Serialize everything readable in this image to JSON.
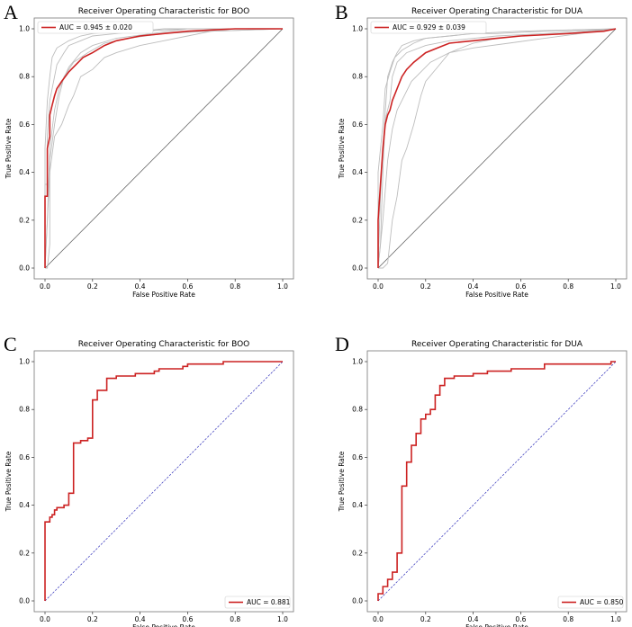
{
  "panels": [
    {
      "letter": "A"
    },
    {
      "letter": "B"
    },
    {
      "letter": "C"
    },
    {
      "letter": "D"
    }
  ],
  "colors": {
    "mean": "#cc2222",
    "fold": "#bdbdbd",
    "diag_solid": "#555555",
    "diag_dashed": "#3333bb",
    "axes": "#777777"
  },
  "chart_data": [
    {
      "type": "line",
      "title": "Receiver Operating Characteristic for BOO",
      "xlabel": "False Positive Rate",
      "ylabel": "True Positive Rate",
      "xlim": [
        0,
        1
      ],
      "ylim": [
        0,
        1
      ],
      "xticks": [
        "0.0",
        "0.2",
        "0.4",
        "0.6",
        "0.8",
        "1.0"
      ],
      "yticks": [
        "0.0",
        "0.2",
        "0.4",
        "0.6",
        "0.8",
        "1.0"
      ],
      "legend_location": "top-left",
      "legend": "AUC = 0.945 ± 0.020",
      "diagonal": "solid",
      "series": [
        {
          "name": "mean",
          "x": [
            0,
            0,
            0.01,
            0.01,
            0.02,
            0.02,
            0.03,
            0.04,
            0.05,
            0.07,
            0.1,
            0.13,
            0.16,
            0.2,
            0.25,
            0.3,
            0.4,
            0.5,
            0.6,
            0.8,
            1.0
          ],
          "y": [
            0,
            0.3,
            0.3,
            0.5,
            0.55,
            0.64,
            0.68,
            0.72,
            0.75,
            0.78,
            0.82,
            0.85,
            0.88,
            0.9,
            0.93,
            0.95,
            0.97,
            0.98,
            0.99,
            1.0,
            1.0
          ]
        },
        {
          "name": "fold 1",
          "x": [
            0,
            0,
            0.01,
            0.01,
            0.02,
            0.04,
            0.05,
            0.08,
            0.1,
            0.15,
            0.2,
            0.3,
            0.4,
            0.6,
            1.0
          ],
          "y": [
            0,
            0.35,
            0.35,
            0.55,
            0.7,
            0.8,
            0.85,
            0.9,
            0.93,
            0.95,
            0.97,
            0.98,
            0.99,
            1.0,
            1.0
          ]
        },
        {
          "name": "fold 2",
          "x": [
            0,
            0.01,
            0.02,
            0.02,
            0.04,
            0.06,
            0.08,
            0.12,
            0.18,
            0.25,
            0.35,
            0.5,
            0.7,
            1.0
          ],
          "y": [
            0,
            0,
            0.1,
            0.45,
            0.6,
            0.72,
            0.8,
            0.86,
            0.9,
            0.94,
            0.96,
            0.98,
            0.99,
            1.0
          ]
        },
        {
          "name": "fold 3",
          "x": [
            0,
            0.02,
            0.04,
            0.07,
            0.1,
            0.12,
            0.15,
            0.2,
            0.25,
            0.3,
            0.4,
            0.5,
            0.6,
            0.7,
            1.0
          ],
          "y": [
            0,
            0.4,
            0.55,
            0.6,
            0.68,
            0.72,
            0.8,
            0.83,
            0.88,
            0.9,
            0.93,
            0.95,
            0.97,
            0.99,
            1.0
          ]
        },
        {
          "name": "fold 4",
          "x": [
            0,
            0,
            0.01,
            0.02,
            0.03,
            0.05,
            0.1,
            0.15,
            0.2,
            0.3,
            0.4,
            0.5,
            1.0
          ],
          "y": [
            0,
            0.5,
            0.7,
            0.8,
            0.88,
            0.92,
            0.95,
            0.97,
            0.98,
            0.99,
            0.99,
            1.0,
            1.0
          ]
        },
        {
          "name": "fold 5",
          "x": [
            0,
            0.01,
            0.02,
            0.04,
            0.06,
            0.1,
            0.15,
            0.2,
            0.3,
            0.45,
            0.6,
            1.0
          ],
          "y": [
            0,
            0.2,
            0.5,
            0.66,
            0.75,
            0.84,
            0.9,
            0.93,
            0.96,
            0.98,
            1.0,
            1.0
          ]
        }
      ]
    },
    {
      "type": "line",
      "title": "Receiver Operating Characteristic for DUA",
      "xlabel": "False Positive Rate",
      "ylabel": "True Positive Rate",
      "xlim": [
        0,
        1
      ],
      "ylim": [
        0,
        1
      ],
      "xticks": [
        "0.0",
        "0.2",
        "0.4",
        "0.6",
        "0.8",
        "1.0"
      ],
      "yticks": [
        "0.0",
        "0.2",
        "0.4",
        "0.6",
        "0.8",
        "1.0"
      ],
      "legend_location": "top-left",
      "legend": "AUC = 0.929 ± 0.039",
      "diagonal": "solid",
      "series": [
        {
          "name": "mean",
          "x": [
            0,
            0,
            0.01,
            0.02,
            0.03,
            0.04,
            0.05,
            0.06,
            0.08,
            0.1,
            0.12,
            0.15,
            0.2,
            0.25,
            0.3,
            0.4,
            0.5,
            0.6,
            0.8,
            0.95,
            1.0
          ],
          "y": [
            0,
            0.2,
            0.35,
            0.5,
            0.6,
            0.64,
            0.66,
            0.7,
            0.75,
            0.8,
            0.83,
            0.86,
            0.9,
            0.92,
            0.94,
            0.95,
            0.96,
            0.97,
            0.98,
            0.99,
            1.0
          ]
        },
        {
          "name": "fold 1",
          "x": [
            0,
            0.01,
            0.02,
            0.03,
            0.05,
            0.06,
            0.08,
            0.12,
            0.2,
            0.3,
            0.5,
            0.7,
            1.0
          ],
          "y": [
            0,
            0.1,
            0.4,
            0.62,
            0.7,
            0.8,
            0.86,
            0.9,
            0.93,
            0.95,
            0.97,
            0.98,
            1.0
          ]
        },
        {
          "name": "fold 2",
          "x": [
            0,
            0.02,
            0.04,
            0.06,
            0.08,
            0.1,
            0.12,
            0.15,
            0.18,
            0.2,
            0.25,
            0.3,
            0.4,
            0.5,
            0.6,
            0.8,
            1.0
          ],
          "y": [
            0,
            0,
            0.02,
            0.2,
            0.3,
            0.45,
            0.5,
            0.6,
            0.72,
            0.78,
            0.84,
            0.9,
            0.94,
            0.96,
            0.97,
            0.98,
            1.0
          ]
        },
        {
          "name": "fold 3",
          "x": [
            0,
            0.01,
            0.02,
            0.03,
            0.04,
            0.06,
            0.08,
            0.1,
            0.15,
            0.2,
            0.3,
            0.4,
            0.6,
            1.0
          ],
          "y": [
            0,
            0.3,
            0.5,
            0.65,
            0.8,
            0.86,
            0.9,
            0.93,
            0.95,
            0.96,
            0.97,
            0.98,
            0.99,
            1.0
          ]
        },
        {
          "name": "fold 4",
          "x": [
            0,
            0,
            0.02,
            0.03,
            0.05,
            0.07,
            0.1,
            0.15,
            0.2,
            0.3,
            0.4,
            0.5,
            0.7,
            1.0
          ],
          "y": [
            0,
            0.4,
            0.6,
            0.75,
            0.82,
            0.88,
            0.91,
            0.94,
            0.96,
            0.97,
            0.98,
            0.98,
            0.99,
            1.0
          ]
        },
        {
          "name": "fold 5",
          "x": [
            0,
            0.02,
            0.04,
            0.06,
            0.08,
            0.1,
            0.14,
            0.18,
            0.22,
            0.3,
            0.4,
            0.55,
            0.7,
            0.85,
            1.0
          ],
          "y": [
            0,
            0.2,
            0.45,
            0.58,
            0.66,
            0.7,
            0.78,
            0.82,
            0.86,
            0.9,
            0.92,
            0.94,
            0.96,
            0.98,
            1.0
          ]
        }
      ]
    },
    {
      "type": "line",
      "title": "Receiver Operating Characteristic for BOO",
      "xlabel": "False Positive Rate",
      "ylabel": "True Positive Rate",
      "xlim": [
        0,
        1
      ],
      "ylim": [
        0,
        1
      ],
      "xticks": [
        "0.0",
        "0.2",
        "0.4",
        "0.6",
        "0.8",
        "1.0"
      ],
      "yticks": [
        "0.0",
        "0.2",
        "0.4",
        "0.6",
        "0.8",
        "1.0"
      ],
      "legend_location": "bottom-right",
      "legend": "AUC = 0.881",
      "diagonal": "dashed",
      "series": [
        {
          "name": "ROC",
          "x": [
            0,
            0,
            0.02,
            0.02,
            0.03,
            0.03,
            0.04,
            0.04,
            0.05,
            0.05,
            0.08,
            0.08,
            0.1,
            0.1,
            0.12,
            0.12,
            0.15,
            0.15,
            0.18,
            0.18,
            0.2,
            0.2,
            0.22,
            0.22,
            0.26,
            0.26,
            0.3,
            0.3,
            0.38,
            0.38,
            0.46,
            0.46,
            0.48,
            0.48,
            0.58,
            0.58,
            0.6,
            0.6,
            0.75,
            0.75,
            1.0
          ],
          "y": [
            0,
            0.33,
            0.33,
            0.35,
            0.35,
            0.36,
            0.36,
            0.38,
            0.38,
            0.39,
            0.39,
            0.4,
            0.4,
            0.45,
            0.45,
            0.66,
            0.66,
            0.67,
            0.67,
            0.68,
            0.68,
            0.84,
            0.84,
            0.88,
            0.88,
            0.93,
            0.93,
            0.94,
            0.94,
            0.95,
            0.95,
            0.96,
            0.96,
            0.97,
            0.97,
            0.98,
            0.98,
            0.99,
            0.99,
            1.0,
            1.0
          ]
        }
      ]
    },
    {
      "type": "line",
      "title": "Receiver Operating Characteristic for DUA",
      "xlabel": "False Positive Rate",
      "ylabel": "True Positive Rate",
      "xlim": [
        0,
        1
      ],
      "ylim": [
        0,
        1
      ],
      "xticks": [
        "0.0",
        "0.2",
        "0.4",
        "0.6",
        "0.8",
        "1.0"
      ],
      "yticks": [
        "0.0",
        "0.2",
        "0.4",
        "0.6",
        "0.8",
        "1.0"
      ],
      "legend_location": "bottom-right",
      "legend": "AUC = 0.850",
      "diagonal": "dashed",
      "series": [
        {
          "name": "ROC",
          "x": [
            0,
            0,
            0.02,
            0.02,
            0.04,
            0.04,
            0.06,
            0.06,
            0.08,
            0.08,
            0.1,
            0.1,
            0.12,
            0.12,
            0.14,
            0.14,
            0.16,
            0.16,
            0.18,
            0.18,
            0.2,
            0.2,
            0.22,
            0.22,
            0.24,
            0.24,
            0.26,
            0.26,
            0.28,
            0.28,
            0.32,
            0.32,
            0.4,
            0.4,
            0.46,
            0.46,
            0.56,
            0.56,
            0.7,
            0.7,
            0.98,
            0.98,
            1.0
          ],
          "y": [
            0,
            0.03,
            0.03,
            0.06,
            0.06,
            0.09,
            0.09,
            0.12,
            0.12,
            0.2,
            0.2,
            0.48,
            0.48,
            0.58,
            0.58,
            0.65,
            0.65,
            0.7,
            0.7,
            0.76,
            0.76,
            0.78,
            0.78,
            0.8,
            0.8,
            0.86,
            0.86,
            0.9,
            0.9,
            0.93,
            0.93,
            0.94,
            0.94,
            0.95,
            0.95,
            0.96,
            0.96,
            0.97,
            0.97,
            0.99,
            0.99,
            1.0,
            1.0
          ]
        }
      ]
    }
  ]
}
